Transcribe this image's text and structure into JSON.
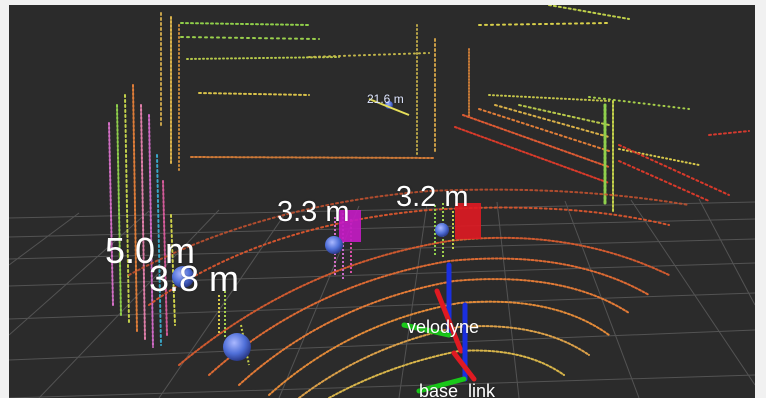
{
  "labels": {
    "person_a": "5.0 m",
    "person_b": "3.8 m",
    "person_c": "3.3 m",
    "person_d": "3.2 m",
    "far": "21.6 m"
  },
  "frames": {
    "sensor": "velodyne",
    "base": "base_link"
  },
  "colors": {
    "background": "#2b2b2b",
    "grid": "#5a5a5a",
    "sphere": "#4f6fd8",
    "magenta_box": "#c21bc2",
    "red_box": "#e01a22",
    "axis_x": "#e01a22",
    "axis_y": "#19c919",
    "axis_z": "#1a2fe0"
  }
}
